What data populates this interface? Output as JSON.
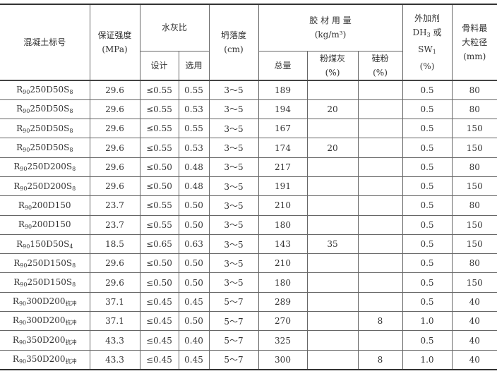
{
  "header": {
    "grade": "混凝土标号",
    "strength": "保证强度",
    "strength_unit": "(MPa)",
    "wc": "水灰比",
    "wc_design": "设计",
    "wc_used": "选用",
    "slump": "坍落度",
    "slump_unit": "(cm)",
    "binder": "胶 材 用 量",
    "binder_unit": "(kg/m³)",
    "binder_total": "总量",
    "flyash": "粉煤灰",
    "flyash_unit": "(%)",
    "silica": "硅粉",
    "silica_unit": "(%)",
    "admix1": "外加剂",
    "admix2a": "DH",
    "admix2sub": "3",
    "admix2b": " 或",
    "admix3a": "SW",
    "admix3sub": "1",
    "admix_unit": "(%)",
    "agg1": "骨料最",
    "agg2": "大粒径",
    "agg_unit": "(mm)"
  },
  "rows": [
    {
      "r": "R",
      "s1": "90",
      "m": "250D50S",
      "s2": "8",
      "strength": "29.6",
      "design": "≤0.55",
      "used": "0.55",
      "slump": "3～5",
      "total": "189",
      "flyash": "",
      "silica": "",
      "admix": "0.5",
      "agg": "80"
    },
    {
      "r": "R",
      "s1": "90",
      "m": "250D50S",
      "s2": "8",
      "strength": "29.6",
      "design": "≤0.55",
      "used": "0.53",
      "slump": "3～5",
      "total": "194",
      "flyash": "20",
      "silica": "",
      "admix": "0.5",
      "agg": "80"
    },
    {
      "r": "R",
      "s1": "90",
      "m": "250D50S",
      "s2": "8",
      "strength": "29.6",
      "design": "≤0.55",
      "used": "0.55",
      "slump": "3～5",
      "total": "167",
      "flyash": "",
      "silica": "",
      "admix": "0.5",
      "agg": "150"
    },
    {
      "r": "R",
      "s1": "90",
      "m": "250D50S",
      "s2": "8",
      "strength": "29.6",
      "design": "≤0.55",
      "used": "0.53",
      "slump": "3～5",
      "total": "174",
      "flyash": "20",
      "silica": "",
      "admix": "0.5",
      "agg": "150"
    },
    {
      "r": "R",
      "s1": "90",
      "m": "250D200S",
      "s2": "8",
      "strength": "29.6",
      "design": "≤0.50",
      "used": "0.48",
      "slump": "3～5",
      "total": "217",
      "flyash": "",
      "silica": "",
      "admix": "0.5",
      "agg": "80"
    },
    {
      "r": "R",
      "s1": "90",
      "m": "250D200S",
      "s2": "8",
      "strength": "29.6",
      "design": "≤0.50",
      "used": "0.48",
      "slump": "3～5",
      "total": "191",
      "flyash": "",
      "silica": "",
      "admix": "0.5",
      "agg": "150"
    },
    {
      "r": "R",
      "s1": "90",
      "m": "200D150",
      "s2": "",
      "strength": "23.7",
      "design": "≤0.55",
      "used": "0.50",
      "slump": "3～5",
      "total": "210",
      "flyash": "",
      "silica": "",
      "admix": "0.5",
      "agg": "80"
    },
    {
      "r": "R",
      "s1": "90",
      "m": "200D150",
      "s2": "",
      "strength": "23.7",
      "design": "≤0.55",
      "used": "0.50",
      "slump": "3～5",
      "total": "180",
      "flyash": "",
      "silica": "",
      "admix": "0.5",
      "agg": "150"
    },
    {
      "r": "R",
      "s1": "90",
      "m": "150D50S",
      "s2": "4",
      "strength": "18.5",
      "design": "≤0.65",
      "used": "0.63",
      "slump": "3～5",
      "total": "143",
      "flyash": "35",
      "silica": "",
      "admix": "0.5",
      "agg": "150"
    },
    {
      "r": "R",
      "s1": "90",
      "m": "250D150S",
      "s2": "8",
      "strength": "29.6",
      "design": "≤0.50",
      "used": "0.50",
      "slump": "3～5",
      "total": "210",
      "flyash": "",
      "silica": "",
      "admix": "0.5",
      "agg": "80"
    },
    {
      "r": "R",
      "s1": "90",
      "m": "250D150S",
      "s2": "8",
      "strength": "29.6",
      "design": "≤0.50",
      "used": "0.50",
      "slump": "3～5",
      "total": "180",
      "flyash": "",
      "silica": "",
      "admix": "0.5",
      "agg": "150"
    },
    {
      "r": "R",
      "s1": "90",
      "m": "300D200",
      "s2": "抗冲",
      "strength": "37.1",
      "design": "≤0.45",
      "used": "0.45",
      "slump": "5～7",
      "total": "289",
      "flyash": "",
      "silica": "",
      "admix": "0.5",
      "agg": "40"
    },
    {
      "r": "R",
      "s1": "90",
      "m": "300D200",
      "s2": "抗冲",
      "strength": "37.1",
      "design": "≤0.45",
      "used": "0.50",
      "slump": "5～7",
      "total": "270",
      "flyash": "",
      "silica": "8",
      "admix": "1.0",
      "agg": "40"
    },
    {
      "r": "R",
      "s1": "90",
      "m": "350D200",
      "s2": "抗冲",
      "strength": "43.3",
      "design": "≤0.45",
      "used": "0.40",
      "slump": "5～7",
      "total": "325",
      "flyash": "",
      "silica": "",
      "admix": "0.5",
      "agg": "40"
    },
    {
      "r": "R",
      "s1": "90",
      "m": "350D200",
      "s2": "抗冲",
      "strength": "43.3",
      "design": "≤0.45",
      "used": "0.45",
      "slump": "5～7",
      "total": "300",
      "flyash": "",
      "silica": "8",
      "admix": "1.0",
      "agg": "40"
    }
  ]
}
